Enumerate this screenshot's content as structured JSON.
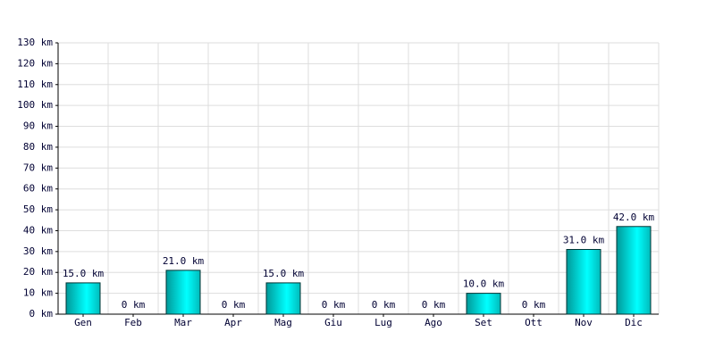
{
  "chart_data": {
    "type": "bar",
    "categories": [
      "Gen",
      "Feb",
      "Mar",
      "Apr",
      "Mag",
      "Giu",
      "Lug",
      "Ago",
      "Set",
      "Ott",
      "Nov",
      "Dic"
    ],
    "values": [
      15,
      0,
      21,
      0,
      15,
      0,
      0,
      0,
      10,
      0,
      31,
      42
    ],
    "value_labels": [
      "15.0 km",
      "0 km",
      "21.0 km",
      "0 km",
      "15.0 km",
      "0 km",
      "0 km",
      "0 km",
      "10.0 km",
      "0 km",
      "31.0 km",
      "42.0 km"
    ],
    "color": "#00ffff",
    "ylim": [
      0,
      130
    ],
    "yticks": [
      {
        "value": 0,
        "label": "0 km"
      },
      {
        "value": 10,
        "label": "10 km"
      },
      {
        "value": 20,
        "label": "20 km"
      },
      {
        "value": 30,
        "label": "30 km"
      },
      {
        "value": 40,
        "label": "40 km"
      },
      {
        "value": 50,
        "label": "50 km"
      },
      {
        "value": 60,
        "label": "60 km"
      },
      {
        "value": 70,
        "label": "70 km"
      },
      {
        "value": 80,
        "label": "80 km"
      },
      {
        "value": 90,
        "label": "90 km"
      },
      {
        "value": 100,
        "label": "100 km"
      },
      {
        "value": 110,
        "label": "110 km"
      },
      {
        "value": 120,
        "label": "120 km"
      },
      {
        "value": 130,
        "label": "130 km"
      }
    ],
    "grid": true
  }
}
